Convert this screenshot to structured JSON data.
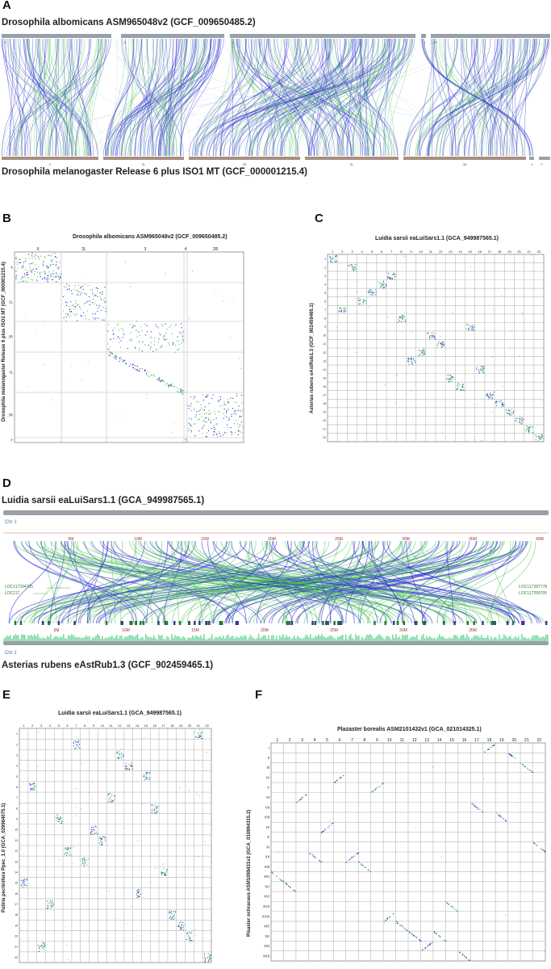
{
  "panels": {
    "A": {
      "label": "A",
      "top_title": "Drosophila albomicans ASM965048v2 (GCF_009650485.2)",
      "bottom_title": "Drosophila melanogaster Release 6 plus ISO1 MT (GCF_000001215.4)",
      "top_chroms": [
        "X",
        "2L",
        "3",
        "4",
        "2R"
      ],
      "bottom_chroms": [
        "X",
        "2L",
        "2R",
        "3L",
        "3R",
        "4",
        "Y"
      ]
    },
    "B": {
      "label": "B",
      "title": "Drosophila albomicans ASM965048v2 (GCF_009650485.2)",
      "ylabel": "Drosophila melanogaster Release 6 plus ISO1 MT (GCF_000001215.4)",
      "col_labels": [
        "X",
        "2L",
        "3",
        "4",
        "2R"
      ],
      "row_labels": [
        "X",
        "2L",
        "2R",
        "3L",
        "3R",
        "Y"
      ]
    },
    "C": {
      "label": "C",
      "title": "Luidia sarsii eaLuiSars1.1 (GCA_949987565.1)",
      "ylabel": "Asterias rubens eAstRub1.3 (GCF_902459465.1)",
      "col_labels": [
        "1",
        "2",
        "3",
        "4",
        "5",
        "6",
        "7",
        "8",
        "9",
        "10",
        "11",
        "12",
        "13",
        "14",
        "15",
        "16",
        "17",
        "18",
        "19",
        "20",
        "21",
        "22"
      ],
      "row_labels": [
        "1",
        "2",
        "3",
        "4",
        "5",
        "6",
        "7",
        "8",
        "9",
        "10",
        "11",
        "12",
        "13",
        "14",
        "15",
        "16",
        "17",
        "18",
        "19",
        "20",
        "21",
        "22"
      ]
    },
    "D": {
      "label": "D",
      "top_title": "Luidia sarsii eaLuiSars1.1 (GCA_949987565.1)",
      "bottom_title": "Asterias rubens eAstRub1.3 (GCF_902459465.1)",
      "top_chr": "Chr 1",
      "bottom_chr": "Chr 1",
      "top_ticks": [
        "5M",
        "10M",
        "15M",
        "20M",
        "25M",
        "30M",
        "35M",
        "40M"
      ],
      "bottom_ticks": [
        "5M",
        "10M",
        "15M",
        "20M",
        "25M",
        "30M",
        "35M"
      ],
      "gene_labels_left": [
        "LOC117294755",
        "LOC117"
      ],
      "gene_labels_right": [
        "LOC117287778",
        "LOC117290705"
      ]
    },
    "E": {
      "label": "E",
      "title": "Luidia sarsii eaLuiSars1.1 (GCA_949987565.1)",
      "ylabel": "Patiria pectinifera Ppec_1.0 (GCA_029964075.1)",
      "col_labels": [
        "1",
        "2",
        "3",
        "4",
        "5",
        "6",
        "7",
        "8",
        "9",
        "10",
        "11",
        "12",
        "13",
        "14",
        "15",
        "16",
        "17",
        "18",
        "19",
        "20",
        "21",
        "22"
      ],
      "row_labels": [
        "1",
        "2",
        "3",
        "4",
        "5",
        "6",
        "7",
        "8",
        "9",
        "10",
        "11",
        "12",
        "13",
        "14",
        "15",
        "16",
        "17",
        "18",
        "19",
        "20",
        "21",
        "22"
      ]
    },
    "F": {
      "label": "F",
      "title": "Plazaster borealis ASM2101432v1 (GCA_021014325.1)",
      "ylabel": "Pisaster ochraceus ASM1099431v2 (GCA_010994315.2)",
      "col_labels": [
        "1",
        "2",
        "3",
        "4",
        "5",
        "6",
        "7",
        "8",
        "9",
        "10",
        "11",
        "12",
        "13",
        "14",
        "15",
        "16",
        "17",
        "18",
        "19",
        "20",
        "21",
        "22"
      ],
      "row_labels": [
        "I",
        "II",
        "III",
        "IV",
        "V",
        "VI",
        "VII",
        "VIII",
        "IX",
        "X",
        "XI",
        "XII",
        "XIII",
        "XIV",
        "XV",
        "XVI",
        "XVII",
        "XVIII",
        "XIX",
        "XX",
        "XXI",
        "XXII"
      ]
    }
  },
  "colors": {
    "blue": "#2b2fd1",
    "green": "#3fc24a",
    "chrom_bar": "#9aa0a8",
    "tick_bar": "#a98f80",
    "grid": "#b8b8b8"
  }
}
